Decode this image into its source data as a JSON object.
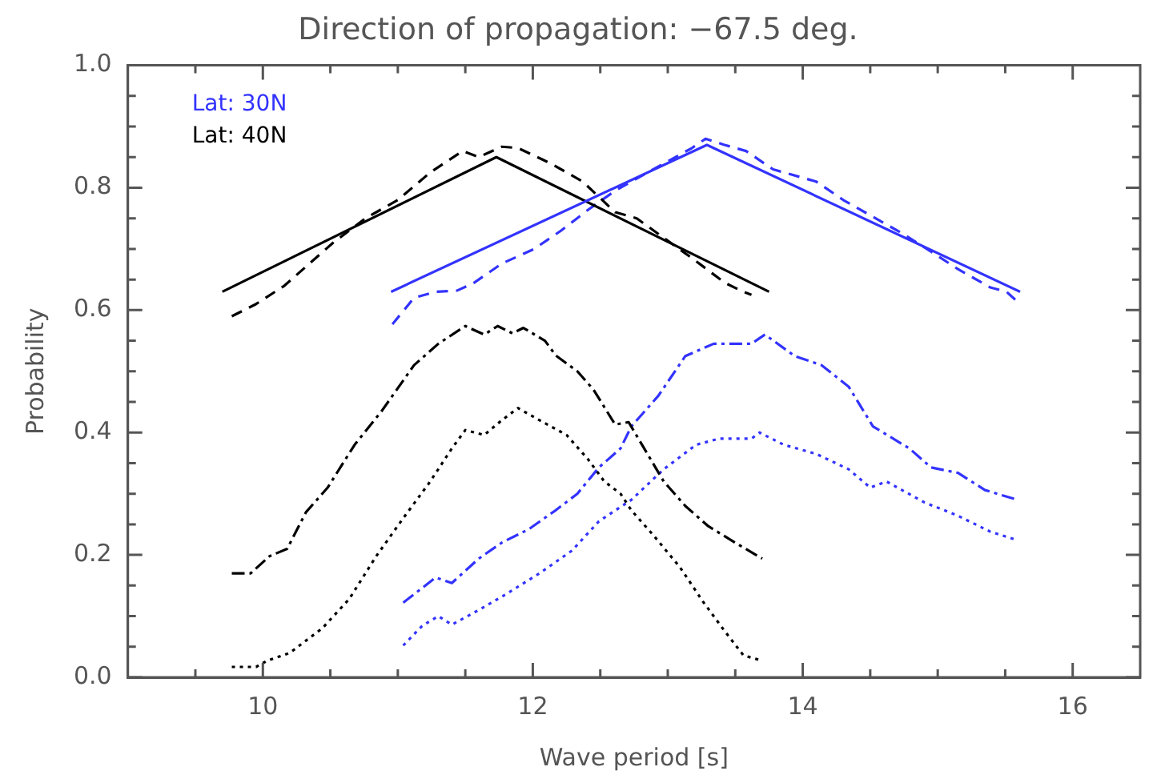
{
  "chart_data": {
    "type": "line",
    "title": "Direction of propagation: −67.5 deg.",
    "xlabel": "Wave period [s]",
    "ylabel": "Probability",
    "xlim": [
      9,
      16.5
    ],
    "ylim": [
      0,
      1
    ],
    "xticks": [
      {
        "value": 9.5,
        "label": null
      },
      10,
      {
        "value": 10.5,
        "label": null
      },
      {
        "value": 11,
        "label": null
      },
      {
        "value": 11.5,
        "label": null
      },
      12,
      {
        "value": 12.5,
        "label": null
      },
      {
        "value": 13,
        "label": null
      },
      {
        "value": 13.5,
        "label": null
      },
      14,
      {
        "value": 14.5,
        "label": null
      },
      {
        "value": 15,
        "label": null
      },
      {
        "value": 15.5,
        "label": null
      },
      16
    ],
    "yticks": [
      {
        "value": 0,
        "label": "0.0"
      },
      {
        "value": 0.05,
        "label": null
      },
      {
        "value": 0.1,
        "label": null
      },
      {
        "value": 0.15,
        "label": null
      },
      {
        "value": 0.2,
        "label": "0.2"
      },
      {
        "value": 0.25,
        "label": null
      },
      {
        "value": 0.3,
        "label": null
      },
      {
        "value": 0.35,
        "label": null
      },
      {
        "value": 0.4,
        "label": "0.4"
      },
      {
        "value": 0.45,
        "label": null
      },
      {
        "value": 0.5,
        "label": null
      },
      {
        "value": 0.55,
        "label": null
      },
      {
        "value": 0.6,
        "label": "0.6"
      },
      {
        "value": 0.65,
        "label": null
      },
      {
        "value": 0.7,
        "label": null
      },
      {
        "value": 0.75,
        "label": null
      },
      {
        "value": 0.8,
        "label": "0.8"
      },
      {
        "value": 0.85,
        "label": null
      },
      {
        "value": 0.9,
        "label": null
      },
      {
        "value": 0.95,
        "label": null
      },
      {
        "value": 1,
        "label": "1.0"
      }
    ],
    "grid": false,
    "legend": "top left",
    "marker": "none",
    "series": [
      {
        "name": "Lat: 30N",
        "color": "#3333ff",
        "line_style": "solid",
        "x": [
          10.95,
          13.29,
          15.61
        ],
        "values": [
          0.63,
          0.87,
          0.63
        ]
      },
      {
        "name": "Lat: 40N",
        "color": "#000000",
        "line_style": "solid",
        "x": [
          9.7,
          11.73,
          13.75
        ],
        "values": [
          0.63,
          0.85,
          0.63
        ]
      },
      {
        "color": "#000000",
        "line_style": "dashed",
        "x": [
          9.77,
          9.95,
          10.16,
          10.52,
          10.76,
          11.0,
          11.24,
          11.48,
          11.6,
          11.77,
          11.89,
          12.13,
          12.37,
          12.61,
          12.77,
          13.21,
          13.42,
          13.56,
          13.62
        ],
        "values": [
          0.59,
          0.61,
          0.64,
          0.71,
          0.75,
          0.78,
          0.825,
          0.86,
          0.85,
          0.867,
          0.865,
          0.84,
          0.81,
          0.76,
          0.75,
          0.68,
          0.645,
          0.63,
          0.625
        ]
      },
      {
        "color": "#3333ff",
        "line_style": "dashed",
        "x": [
          10.96,
          11.12,
          11.28,
          11.44,
          11.56,
          11.77,
          12.01,
          12.21,
          12.41,
          12.61,
          12.85,
          13.18,
          13.28,
          13.42,
          13.58,
          13.78,
          14.1,
          14.3,
          14.5,
          14.74,
          14.99,
          15.15,
          15.39,
          15.51,
          15.61
        ],
        "values": [
          0.577,
          0.62,
          0.63,
          0.632,
          0.644,
          0.676,
          0.7,
          0.73,
          0.764,
          0.795,
          0.825,
          0.865,
          0.88,
          0.87,
          0.86,
          0.83,
          0.81,
          0.78,
          0.755,
          0.725,
          0.69,
          0.667,
          0.637,
          0.63,
          0.61
        ]
      },
      {
        "color": "#000000",
        "line_style": "dashdot",
        "x": [
          9.77,
          9.91,
          10.05,
          10.18,
          10.32,
          10.48,
          10.68,
          10.88,
          11.12,
          11.3,
          11.5,
          11.64,
          11.74,
          11.85,
          11.93,
          12.09,
          12.17,
          12.33,
          12.45,
          12.61,
          12.71,
          12.97,
          13.13,
          13.3,
          13.5,
          13.7
        ],
        "values": [
          0.17,
          0.17,
          0.198,
          0.21,
          0.27,
          0.31,
          0.38,
          0.435,
          0.51,
          0.545,
          0.574,
          0.56,
          0.574,
          0.562,
          0.571,
          0.55,
          0.526,
          0.5,
          0.47,
          0.413,
          0.417,
          0.32,
          0.28,
          0.247,
          0.22,
          0.194
        ]
      },
      {
        "color": "#000000",
        "line_style": "dotted",
        "x": [
          9.77,
          9.95,
          10.03,
          10.2,
          10.44,
          10.64,
          10.84,
          11.04,
          11.24,
          11.4,
          11.5,
          11.64,
          11.77,
          11.89,
          12.05,
          12.25,
          12.41,
          12.53,
          12.65,
          12.73,
          12.89,
          13.09,
          13.26,
          13.42,
          13.56,
          13.7
        ],
        "values": [
          0.017,
          0.017,
          0.027,
          0.04,
          0.08,
          0.128,
          0.198,
          0.26,
          0.32,
          0.374,
          0.404,
          0.396,
          0.42,
          0.44,
          0.42,
          0.396,
          0.356,
          0.32,
          0.3,
          0.273,
          0.233,
          0.18,
          0.124,
          0.076,
          0.036,
          0.027
        ]
      },
      {
        "color": "#3333ff",
        "line_style": "dashdot",
        "x": [
          11.04,
          11.28,
          11.4,
          11.6,
          11.77,
          11.97,
          12.17,
          12.33,
          12.49,
          12.65,
          12.73,
          12.93,
          13.13,
          13.34,
          13.62,
          13.72,
          13.94,
          14.14,
          14.34,
          14.52,
          14.79,
          14.95,
          15.15,
          15.35,
          15.59
        ],
        "values": [
          0.122,
          0.163,
          0.154,
          0.194,
          0.22,
          0.242,
          0.273,
          0.3,
          0.343,
          0.374,
          0.41,
          0.46,
          0.525,
          0.545,
          0.545,
          0.56,
          0.525,
          0.51,
          0.475,
          0.41,
          0.374,
          0.343,
          0.334,
          0.306,
          0.29
        ]
      },
      {
        "color": "#3333ff",
        "line_style": "dotted",
        "x": [
          11.04,
          11.18,
          11.3,
          11.4,
          11.6,
          11.81,
          12.05,
          12.29,
          12.49,
          12.73,
          12.97,
          13.21,
          13.38,
          13.62,
          13.68,
          13.86,
          14.1,
          14.34,
          14.5,
          14.62,
          14.9,
          15.15,
          15.39,
          15.59
        ],
        "values": [
          0.052,
          0.084,
          0.1,
          0.086,
          0.11,
          0.137,
          0.17,
          0.207,
          0.255,
          0.29,
          0.34,
          0.38,
          0.39,
          0.39,
          0.4,
          0.38,
          0.365,
          0.34,
          0.31,
          0.32,
          0.286,
          0.264,
          0.238,
          0.224
        ]
      }
    ]
  }
}
